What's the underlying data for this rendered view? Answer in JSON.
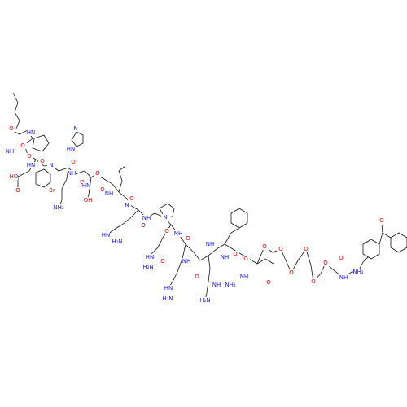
{
  "atoms": [
    {
      "label": "O"
    },
    {
      "label": "HN"
    },
    {
      "label": "NH"
    },
    {
      "label": "O"
    },
    {
      "label": "O"
    },
    {
      "label": "HN"
    },
    {
      "label": "N"
    },
    {
      "label": "O"
    },
    {
      "label": "HO"
    },
    {
      "label": "O"
    },
    {
      "label": "Br"
    },
    {
      "label": "O"
    },
    {
      "label": "NH"
    },
    {
      "label": "O"
    },
    {
      "label": "N"
    },
    {
      "label": "HN"
    },
    {
      "label": "NH₂"
    },
    {
      "label": "O"
    },
    {
      "label": "HN"
    },
    {
      "label": "OH"
    },
    {
      "label": "O"
    },
    {
      "label": "NH"
    },
    {
      "label": "O"
    },
    {
      "label": "N"
    },
    {
      "label": "NH"
    },
    {
      "label": "O"
    },
    {
      "label": "N"
    },
    {
      "label": "HN"
    },
    {
      "label": "H₂N"
    },
    {
      "label": "O"
    },
    {
      "label": "NH"
    },
    {
      "label": "O"
    },
    {
      "label": "HN"
    },
    {
      "label": "H₂N"
    },
    {
      "label": "O"
    },
    {
      "label": "NH"
    },
    {
      "label": "HN"
    },
    {
      "label": "H₂N"
    },
    {
      "label": "O"
    },
    {
      "label": "NH"
    },
    {
      "label": "O"
    },
    {
      "label": "NH"
    },
    {
      "label": "NH"
    },
    {
      "label": "O"
    },
    {
      "label": "H₂N"
    },
    {
      "label": "NH"
    },
    {
      "label": "NH₂"
    },
    {
      "label": "O"
    },
    {
      "label": "O"
    },
    {
      "label": "O"
    },
    {
      "label": "O"
    },
    {
      "label": "O"
    },
    {
      "label": "O"
    },
    {
      "label": "O"
    },
    {
      "label": "NH"
    },
    {
      "label": "O"
    },
    {
      "label": "NH₂"
    },
    {
      "label": "O"
    }
  ]
}
